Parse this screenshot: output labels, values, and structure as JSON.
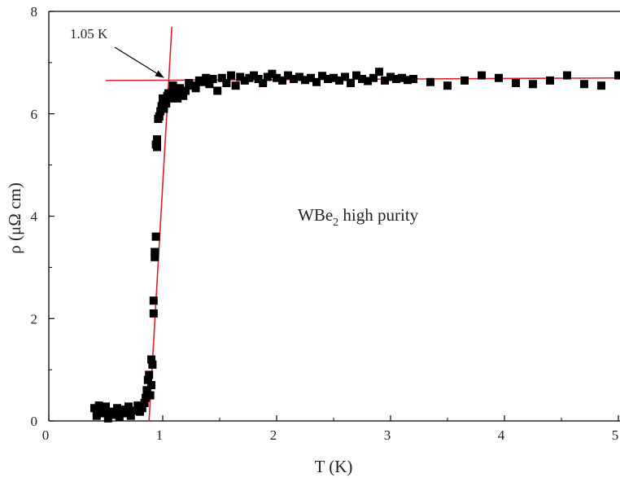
{
  "chart_data": {
    "type": "scatter",
    "xlabel": "T (K)",
    "ylabel": "ρ (μΩ cm)",
    "xlim": [
      0,
      5
    ],
    "ylim": [
      0,
      8
    ],
    "x_ticks": [
      "0",
      "1",
      "2",
      "3",
      "4",
      "5"
    ],
    "y_ticks": [
      "0",
      "2",
      "4",
      "6",
      "8"
    ],
    "grid": false,
    "marker_color": "#000000",
    "line_color": "#d91f26",
    "sample_label": {
      "main": "WBe",
      "sub": "2",
      "rest": " high purity"
    },
    "annotation": {
      "text": "1.05 K",
      "points_to": [
        1.05,
        6.65
      ]
    },
    "fit_lines": [
      {
        "name": "normal-state",
        "x": [
          0.5,
          5.0
        ],
        "y": [
          6.65,
          6.7
        ]
      },
      {
        "name": "transition",
        "x": [
          0.88,
          1.08
        ],
        "y": [
          0.0,
          7.7
        ]
      }
    ],
    "series": [
      {
        "x": [
          0.4,
          0.42,
          0.44,
          0.46,
          0.48,
          0.5,
          0.52,
          0.55,
          0.58,
          0.6,
          0.62,
          0.65,
          0.68,
          0.7,
          0.72,
          0.75,
          0.78,
          0.8,
          0.82,
          0.84,
          0.85,
          0.86,
          0.87,
          0.88,
          0.89,
          0.9,
          0.9,
          0.91,
          0.92,
          0.92,
          0.93,
          0.93,
          0.94,
          0.94,
          0.95,
          0.95,
          0.96,
          0.97,
          0.98,
          0.99,
          1.0,
          1.01,
          1.02,
          1.03,
          1.04,
          1.05,
          1.07,
          1.09,
          1.11,
          1.13,
          1.15,
          1.18,
          1.2,
          1.23,
          1.26,
          1.29,
          1.32,
          1.35,
          1.38,
          1.41,
          1.44,
          1.48,
          1.52,
          1.56,
          1.6,
          1.64,
          1.68,
          1.72,
          1.76,
          1.8,
          1.84,
          1.88,
          1.92,
          1.96,
          2.0,
          2.05,
          2.1,
          2.15,
          2.2,
          2.25,
          2.3,
          2.35,
          2.4,
          2.45,
          2.5,
          2.55,
          2.6,
          2.65,
          2.7,
          2.75,
          2.8,
          2.85,
          2.9,
          2.95,
          3.0,
          3.05,
          3.1,
          3.15,
          3.2,
          3.35,
          3.5,
          3.65,
          3.8,
          3.95,
          4.1,
          4.25,
          4.4,
          4.55,
          4.7,
          4.85,
          5.0
        ],
        "y": [
          0.25,
          0.1,
          0.3,
          0.15,
          0.2,
          0.28,
          0.05,
          0.18,
          0.12,
          0.25,
          0.08,
          0.22,
          0.15,
          0.28,
          0.1,
          0.2,
          0.3,
          0.18,
          0.25,
          0.35,
          0.45,
          0.6,
          0.8,
          0.9,
          0.5,
          0.7,
          1.2,
          1.1,
          2.1,
          2.35,
          3.2,
          3.3,
          3.6,
          5.4,
          5.5,
          5.35,
          5.9,
          5.95,
          6.05,
          6.15,
          6.3,
          6.1,
          6.25,
          6.2,
          6.35,
          6.4,
          6.3,
          6.55,
          6.45,
          6.3,
          6.5,
          6.35,
          6.45,
          6.6,
          6.55,
          6.5,
          6.65,
          6.62,
          6.7,
          6.58,
          6.68,
          6.45,
          6.7,
          6.6,
          6.75,
          6.55,
          6.72,
          6.65,
          6.7,
          6.75,
          6.68,
          6.6,
          6.72,
          6.78,
          6.7,
          6.65,
          6.75,
          6.68,
          6.72,
          6.66,
          6.7,
          6.62,
          6.74,
          6.68,
          6.7,
          6.65,
          6.72,
          6.6,
          6.75,
          6.68,
          6.64,
          6.7,
          6.82,
          6.65,
          6.72,
          6.68,
          6.7,
          6.66,
          6.68,
          6.62,
          6.55,
          6.65,
          6.75,
          6.7,
          6.6,
          6.58,
          6.65,
          6.75,
          6.58,
          6.55,
          6.75
        ]
      }
    ]
  }
}
